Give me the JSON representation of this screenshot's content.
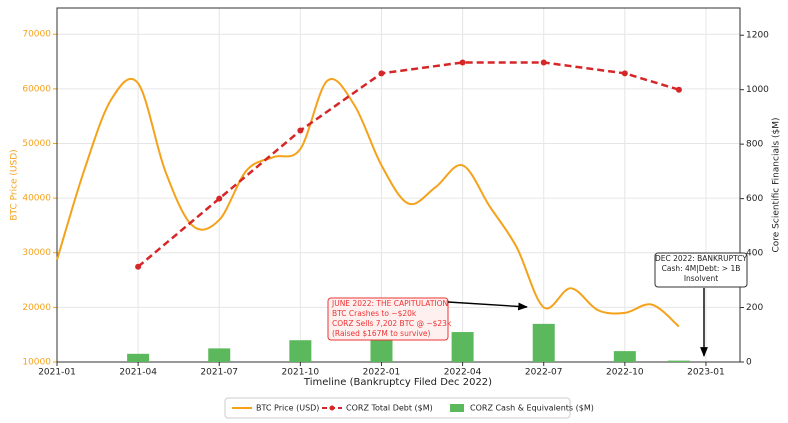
{
  "chart_data": {
    "type": "combo",
    "xlabel": "Timeline (Bankruptcy Filed Dec 2022)",
    "ylabel": "BTC Price (USD)",
    "y2label": "Core Scientific Financials ($M)",
    "xlim": [
      "2021-01",
      "2023-02"
    ],
    "xticks": [
      "2021-01",
      "2021-04",
      "2021-07",
      "2021-10",
      "2022-01",
      "2022-04",
      "2022-07",
      "2022-10",
      "2023-01"
    ],
    "ylim": [
      10000,
      74800
    ],
    "yticks": [
      10000,
      20000,
      30000,
      40000,
      50000,
      60000,
      70000
    ],
    "y2lim": [
      0,
      1300
    ],
    "y2ticks": [
      0,
      200,
      400,
      600,
      800,
      1000,
      1200
    ],
    "grid": true,
    "legend": "bottom",
    "series": [
      {
        "name": "BTC Price (USD)",
        "type": "line",
        "color": "#f5a21b",
        "x": [
          "2021-01",
          "2021-02",
          "2021-03",
          "2021-04",
          "2021-05",
          "2021-06",
          "2021-07",
          "2021-08",
          "2021-09",
          "2021-10",
          "2021-11",
          "2021-12",
          "2022-01",
          "2022-02",
          "2022-03",
          "2022-04",
          "2022-05",
          "2022-06",
          "2022-07",
          "2022-08",
          "2022-09",
          "2022-10",
          "2022-11",
          "2022-12"
        ],
        "values": [
          28700,
          45000,
          58000,
          61000,
          45000,
          35000,
          36000,
          45000,
          47500,
          49000,
          61500,
          57000,
          46000,
          39000,
          42000,
          46000,
          38500,
          31000,
          20000,
          23500,
          19500,
          19000,
          20500,
          16500
        ]
      },
      {
        "name": "CORZ Total Debt ($M)",
        "type": "dashed-line",
        "axis": "y2",
        "color": "#d62728",
        "x": [
          "2021-04",
          "2021-07",
          "2021-10",
          "2022-01",
          "2022-04",
          "2022-07",
          "2022-10",
          "2022-12"
        ],
        "values": [
          350,
          600,
          850,
          1060,
          1100,
          1100,
          1060,
          1000
        ]
      },
      {
        "name": "CORZ Cash & Equivalents ($M)",
        "type": "bar",
        "axis": "y2",
        "color": "#5cb85c",
        "x": [
          "2021-04",
          "2021-07",
          "2021-10",
          "2022-01",
          "2022-04",
          "2022-07",
          "2022-10",
          "2022-12"
        ],
        "values": [
          30,
          50,
          80,
          130,
          110,
          140,
          40,
          5
        ]
      }
    ],
    "annotations": [
      {
        "lines": [
          "JUNE 2022: THE CAPITULATION",
          "BTC Crashes to ~$20k",
          "CORZ Sells 7,202 BTC @ ~$23k",
          "(Raised $167M to survive)"
        ]
      },
      {
        "lines": [
          "DEC 2022: BANKRUPTCY",
          "Cash: 4M|Debt: > 1B",
          "Insolvent"
        ]
      }
    ]
  }
}
